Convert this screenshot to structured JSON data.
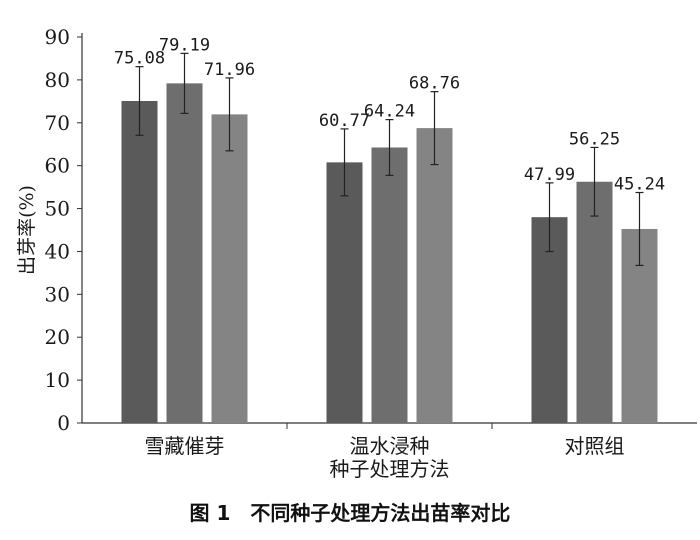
{
  "chart_data": {
    "type": "bar",
    "title": "",
    "caption": "图 1　不同种子处理方法出苗率对比",
    "xlabel": "",
    "ylabel": "出芽率(%)",
    "ylim": [
      0,
      90
    ],
    "yticks": [
      0,
      10,
      20,
      30,
      40,
      50,
      60,
      70,
      80,
      90
    ],
    "grid": false,
    "legend": "none",
    "categories": [
      [
        "雪藏催芽"
      ],
      [
        "温水浸种",
        "种子处理方法"
      ],
      [
        "对照组"
      ]
    ],
    "series": [
      {
        "values": [
          75.08,
          60.77,
          47.99
        ],
        "errors": [
          8.0,
          7.8,
          8.0
        ],
        "color": "#5a5a5a"
      },
      {
        "values": [
          79.19,
          64.24,
          56.25
        ],
        "errors": [
          7.0,
          6.5,
          8.0
        ],
        "color": "#6e6e6e"
      },
      {
        "values": [
          71.96,
          68.76,
          45.24
        ],
        "errors": [
          8.5,
          8.5,
          8.5
        ],
        "color": "#848484"
      }
    ],
    "data_labels": [
      [
        "75.08",
        "60.77",
        "47.99"
      ],
      [
        "79.19",
        "64.24",
        "56.25"
      ],
      [
        "71.96",
        "68.76",
        "45.24"
      ]
    ]
  }
}
